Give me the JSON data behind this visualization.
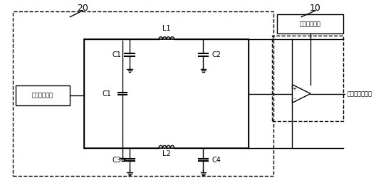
{
  "fig_width": 5.28,
  "fig_height": 2.64,
  "dpi": 100,
  "bg_color": "#ffffff",
  "line_color": "#000000",
  "label_20": "20",
  "label_10": "10",
  "label_L1": "L1",
  "label_L2": "L2",
  "label_C1": "C1",
  "label_C2": "C2",
  "label_C3": "C3",
  "label_C4": "C4",
  "label_antenna": "实际手机天线",
  "label_direction": "方向判断模块",
  "label_phone_input": "手机信号输入端",
  "dashed_line_style": "--",
  "solid_line_style": "-"
}
